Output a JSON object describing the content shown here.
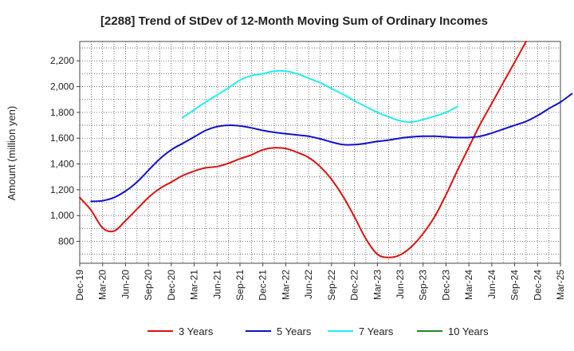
{
  "chart_data": {
    "type": "line",
    "title": "[2288]  Trend of StDev of 12-Month Moving Sum of Ordinary Incomes",
    "xlabel": "",
    "ylabel": "Amount (million yen)",
    "ylim": [
      630,
      2350
    ],
    "yticks": [
      800,
      1000,
      1200,
      1400,
      1600,
      1800,
      2000,
      2200
    ],
    "ytick_labels": [
      "800",
      "1,000",
      "1,200",
      "1,400",
      "1,600",
      "1,800",
      "2,000",
      "2,200"
    ],
    "x_tick_labels": [
      "Dec-19",
      "Mar-20",
      "Jun-20",
      "Sep-20",
      "Dec-20",
      "Mar-21",
      "Jun-21",
      "Sep-21",
      "Dec-21",
      "Mar-22",
      "Jun-22",
      "Sep-22",
      "Dec-22",
      "Mar-23",
      "Jun-23",
      "Sep-23",
      "Dec-23",
      "Mar-24",
      "Jun-24",
      "Sep-24",
      "Dec-24",
      "Mar-25"
    ],
    "grid": true,
    "legend_position": "bottom",
    "series": [
      {
        "name": "3 Years",
        "color": "#dd1111",
        "points": [
          [
            0,
            1140
          ],
          [
            1,
            1040
          ],
          [
            2,
            905
          ],
          [
            3,
            880
          ],
          [
            4,
            960
          ],
          [
            5,
            1050
          ],
          [
            6,
            1140
          ],
          [
            7,
            1210
          ],
          [
            8,
            1260
          ],
          [
            9,
            1310
          ],
          [
            10,
            1345
          ],
          [
            11,
            1370
          ],
          [
            12,
            1380
          ],
          [
            13,
            1405
          ],
          [
            14,
            1440
          ],
          [
            15,
            1470
          ],
          [
            16,
            1510
          ],
          [
            17,
            1525
          ],
          [
            18,
            1520
          ],
          [
            19,
            1490
          ],
          [
            20,
            1450
          ],
          [
            21,
            1380
          ],
          [
            22,
            1280
          ],
          [
            23,
            1150
          ],
          [
            24,
            990
          ],
          [
            25,
            820
          ],
          [
            26,
            700
          ],
          [
            27,
            675
          ],
          [
            28,
            695
          ],
          [
            29,
            760
          ],
          [
            30,
            860
          ],
          [
            31,
            990
          ],
          [
            32,
            1160
          ],
          [
            33,
            1350
          ],
          [
            34,
            1530
          ],
          [
            35,
            1710
          ],
          [
            36,
            1870
          ],
          [
            37,
            2030
          ],
          [
            38,
            2190
          ],
          [
            39,
            2350
          ]
        ]
      },
      {
        "name": "5 Years",
        "color": "#1111cc",
        "points": [
          [
            1,
            1110
          ],
          [
            2,
            1115
          ],
          [
            3,
            1140
          ],
          [
            4,
            1190
          ],
          [
            5,
            1260
          ],
          [
            6,
            1350
          ],
          [
            7,
            1440
          ],
          [
            8,
            1510
          ],
          [
            9,
            1560
          ],
          [
            10,
            1610
          ],
          [
            11,
            1660
          ],
          [
            12,
            1690
          ],
          [
            13,
            1700
          ],
          [
            14,
            1695
          ],
          [
            15,
            1680
          ],
          [
            16,
            1660
          ],
          [
            17,
            1645
          ],
          [
            18,
            1635
          ],
          [
            19,
            1625
          ],
          [
            20,
            1615
          ],
          [
            21,
            1595
          ],
          [
            22,
            1570
          ],
          [
            23,
            1550
          ],
          [
            24,
            1550
          ],
          [
            25,
            1560
          ],
          [
            26,
            1575
          ],
          [
            27,
            1585
          ],
          [
            28,
            1600
          ],
          [
            29,
            1610
          ],
          [
            30,
            1615
          ],
          [
            31,
            1615
          ],
          [
            32,
            1610
          ],
          [
            33,
            1605
          ],
          [
            34,
            1605
          ],
          [
            35,
            1615
          ],
          [
            36,
            1640
          ],
          [
            37,
            1670
          ],
          [
            38,
            1700
          ],
          [
            39,
            1730
          ],
          [
            40,
            1775
          ],
          [
            41,
            1830
          ],
          [
            42,
            1880
          ],
          [
            43,
            1945
          ]
        ]
      },
      {
        "name": "7 Years",
        "color": "#22eeee",
        "points": [
          [
            9,
            1760
          ],
          [
            10,
            1820
          ],
          [
            11,
            1880
          ],
          [
            12,
            1935
          ],
          [
            13,
            1990
          ],
          [
            14,
            2050
          ],
          [
            15,
            2085
          ],
          [
            16,
            2100
          ],
          [
            17,
            2120
          ],
          [
            18,
            2120
          ],
          [
            19,
            2100
          ],
          [
            20,
            2065
          ],
          [
            21,
            2030
          ],
          [
            22,
            1985
          ],
          [
            23,
            1940
          ],
          [
            24,
            1890
          ],
          [
            25,
            1845
          ],
          [
            26,
            1800
          ],
          [
            27,
            1765
          ],
          [
            28,
            1735
          ],
          [
            29,
            1725
          ],
          [
            30,
            1745
          ],
          [
            31,
            1770
          ],
          [
            32,
            1800
          ],
          [
            33,
            1845
          ]
        ]
      },
      {
        "name": "10 Years",
        "color": "#228822",
        "points": []
      }
    ]
  }
}
